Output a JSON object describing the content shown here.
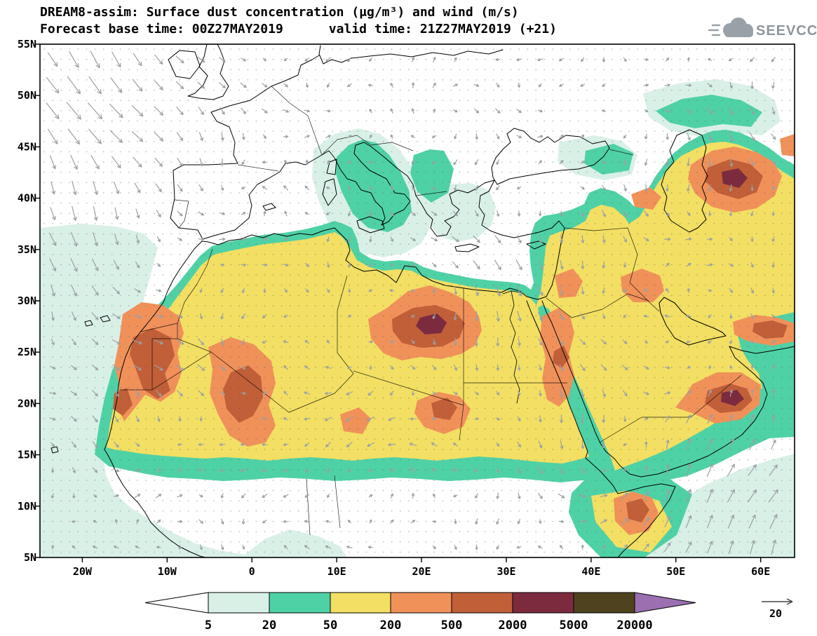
{
  "header": {
    "title_line1": "DREAM8-assim: Surface dust concentration (μg/m³) and wind (m/s)",
    "title_line2": "Forecast base time: 00Z27MAY2019      valid time: 21Z27MAY2019 (+21)",
    "logo_text": "SEEVCCC"
  },
  "axes": {
    "lat_labels": [
      "55N",
      "50N",
      "45N",
      "40N",
      "35N",
      "30N",
      "25N",
      "20N",
      "15N",
      "10N",
      "5N"
    ],
    "lon_labels": [
      "20W",
      "10W",
      "0",
      "10E",
      "20E",
      "30E",
      "40E",
      "50E",
      "60E"
    ]
  },
  "legend": {
    "labels": [
      "5",
      "20",
      "50",
      "200",
      "500",
      "2000",
      "5000",
      "20000"
    ],
    "colors": {
      "under5": "#ffffff",
      "c5_20": "#d9f0e7",
      "c20_50": "#4fd1a6",
      "c50_200": "#f2df63",
      "c200_500": "#f0915a",
      "c500_2000": "#c05f38",
      "c2000_5000": "#7c2b3f",
      "c5000_20000": "#4f431f",
      "over20000": "#9b6fb0",
      "wind_arrow": "#9aa0a5"
    }
  },
  "wind_reference": {
    "label": "20"
  }
}
